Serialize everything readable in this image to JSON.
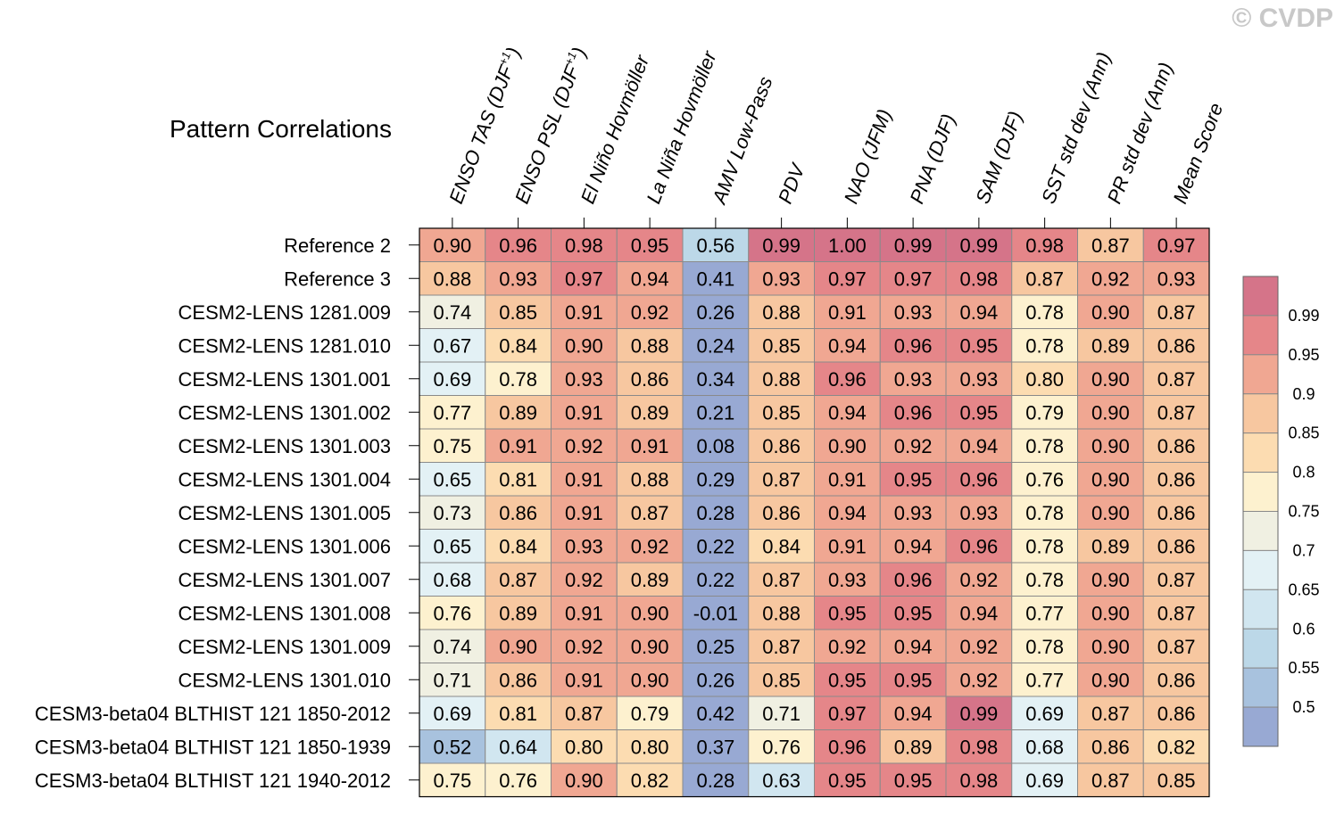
{
  "watermark": "© CVDP",
  "chart_data": {
    "type": "heatmap",
    "title": "Pattern Correlations",
    "columns": [
      {
        "base": "ENSO TAS (DJF",
        "sup": "+1",
        "tail": ")"
      },
      {
        "base": "ENSO PSL (DJF",
        "sup": "+1",
        "tail": ")"
      },
      {
        "base": "El Niño Hovmöller",
        "sup": "",
        "tail": ""
      },
      {
        "base": "La Niña Hovmöller",
        "sup": "",
        "tail": ""
      },
      {
        "base": "AMV Low-Pass",
        "sup": "",
        "tail": ""
      },
      {
        "base": "PDV",
        "sup": "",
        "tail": ""
      },
      {
        "base": "NAO (JFM)",
        "sup": "",
        "tail": ""
      },
      {
        "base": "PNA (DJF)",
        "sup": "",
        "tail": ""
      },
      {
        "base": "SAM (DJF)",
        "sup": "",
        "tail": ""
      },
      {
        "base": "SST std dev (Ann)",
        "sup": "",
        "tail": ""
      },
      {
        "base": "PR std dev (Ann)",
        "sup": "",
        "tail": ""
      },
      {
        "base": "Mean Score",
        "sup": "",
        "tail": ""
      }
    ],
    "rows": [
      "Reference 2",
      "Reference 3",
      "CESM2-LENS 1281.009",
      "CESM2-LENS 1281.010",
      "CESM2-LENS 1301.001",
      "CESM2-LENS 1301.002",
      "CESM2-LENS 1301.003",
      "CESM2-LENS 1301.004",
      "CESM2-LENS 1301.005",
      "CESM2-LENS 1301.006",
      "CESM2-LENS 1301.007",
      "CESM2-LENS 1301.008",
      "CESM2-LENS 1301.009",
      "CESM2-LENS 1301.010",
      "CESM3-beta04 BLTHIST 121 1850-2012",
      "CESM3-beta04 BLTHIST 121 1850-1939",
      "CESM3-beta04 BLTHIST 121 1940-2012"
    ],
    "values": [
      [
        "0.90",
        "0.96",
        "0.98",
        "0.95",
        "0.56",
        "0.99",
        "1.00",
        "0.99",
        "0.99",
        "0.98",
        "0.87",
        "0.97"
      ],
      [
        "0.88",
        "0.93",
        "0.97",
        "0.94",
        "0.41",
        "0.93",
        "0.97",
        "0.97",
        "0.98",
        "0.87",
        "0.92",
        "0.93"
      ],
      [
        "0.74",
        "0.85",
        "0.91",
        "0.92",
        "0.26",
        "0.88",
        "0.91",
        "0.93",
        "0.94",
        "0.78",
        "0.90",
        "0.87"
      ],
      [
        "0.67",
        "0.84",
        "0.90",
        "0.88",
        "0.24",
        "0.85",
        "0.94",
        "0.96",
        "0.95",
        "0.78",
        "0.89",
        "0.86"
      ],
      [
        "0.69",
        "0.78",
        "0.93",
        "0.86",
        "0.34",
        "0.88",
        "0.96",
        "0.93",
        "0.93",
        "0.80",
        "0.90",
        "0.87"
      ],
      [
        "0.77",
        "0.89",
        "0.91",
        "0.89",
        "0.21",
        "0.85",
        "0.94",
        "0.96",
        "0.95",
        "0.79",
        "0.90",
        "0.87"
      ],
      [
        "0.75",
        "0.91",
        "0.92",
        "0.91",
        "0.08",
        "0.86",
        "0.90",
        "0.92",
        "0.94",
        "0.78",
        "0.90",
        "0.86"
      ],
      [
        "0.65",
        "0.81",
        "0.91",
        "0.88",
        "0.29",
        "0.87",
        "0.91",
        "0.95",
        "0.96",
        "0.76",
        "0.90",
        "0.86"
      ],
      [
        "0.73",
        "0.86",
        "0.91",
        "0.87",
        "0.28",
        "0.86",
        "0.94",
        "0.93",
        "0.93",
        "0.78",
        "0.90",
        "0.86"
      ],
      [
        "0.65",
        "0.84",
        "0.93",
        "0.92",
        "0.22",
        "0.84",
        "0.91",
        "0.94",
        "0.96",
        "0.78",
        "0.89",
        "0.86"
      ],
      [
        "0.68",
        "0.87",
        "0.92",
        "0.89",
        "0.22",
        "0.87",
        "0.93",
        "0.96",
        "0.92",
        "0.78",
        "0.90",
        "0.87"
      ],
      [
        "0.76",
        "0.89",
        "0.91",
        "0.90",
        "-0.01",
        "0.88",
        "0.95",
        "0.95",
        "0.94",
        "0.77",
        "0.90",
        "0.87"
      ],
      [
        "0.74",
        "0.90",
        "0.92",
        "0.90",
        "0.25",
        "0.87",
        "0.92",
        "0.94",
        "0.92",
        "0.78",
        "0.90",
        "0.87"
      ],
      [
        "0.71",
        "0.86",
        "0.91",
        "0.90",
        "0.26",
        "0.85",
        "0.95",
        "0.95",
        "0.92",
        "0.77",
        "0.90",
        "0.86"
      ],
      [
        "0.69",
        "0.81",
        "0.87",
        "0.79",
        "0.42",
        "0.71",
        "0.97",
        "0.94",
        "0.99",
        "0.69",
        "0.87",
        "0.86"
      ],
      [
        "0.52",
        "0.64",
        "0.80",
        "0.80",
        "0.37",
        "0.76",
        "0.96",
        "0.89",
        "0.98",
        "0.68",
        "0.86",
        "0.82"
      ],
      [
        "0.75",
        "0.76",
        "0.90",
        "0.82",
        "0.28",
        "0.63",
        "0.95",
        "0.95",
        "0.98",
        "0.69",
        "0.87",
        "0.85"
      ]
    ],
    "colorbar": {
      "levels": [
        "0.5",
        "0.55",
        "0.6",
        "0.65",
        "0.7",
        "0.75",
        "0.8",
        "0.85",
        "0.9",
        "0.95",
        "0.99"
      ],
      "thresholds": [
        0.5,
        0.55,
        0.6,
        0.65,
        0.7,
        0.75,
        0.8,
        0.85,
        0.9,
        0.95,
        0.99
      ],
      "colors": [
        "#98a9d3",
        "#a8c2de",
        "#bcd8e8",
        "#d1e6f0",
        "#e3f1f5",
        "#f0f0e2",
        "#fdf1cf",
        "#fcdcb1",
        "#f7c7a0",
        "#f0a792",
        "#e58689",
        "#d57489"
      ]
    }
  }
}
